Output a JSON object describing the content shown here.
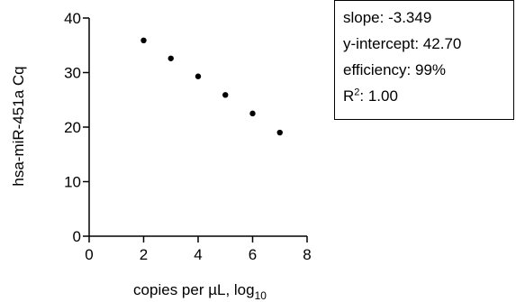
{
  "chart_data": {
    "type": "scatter",
    "title": "",
    "xlabel": "copies per µL, log",
    "xlabel_subscript": "10",
    "ylabel": "hsa-miR-451a Cq",
    "xlim": [
      0,
      8
    ],
    "ylim": [
      0,
      40
    ],
    "xticks": [
      "0",
      "2",
      "4",
      "6",
      "8"
    ],
    "yticks": [
      "0",
      "10",
      "20",
      "30",
      "40"
    ],
    "x": [
      2,
      3,
      4,
      5,
      6,
      7
    ],
    "y": [
      35.9,
      32.6,
      29.3,
      25.9,
      22.5,
      19.0
    ],
    "grid": false,
    "marker_color": "#000000"
  },
  "stats_box": {
    "slope": "slope: -3.349",
    "intercept": "y-intercept: 42.70",
    "efficiency": "efficiency: 99%",
    "r2_label": "R",
    "r2_sup": "2",
    "r2_value": ": 1.00"
  }
}
